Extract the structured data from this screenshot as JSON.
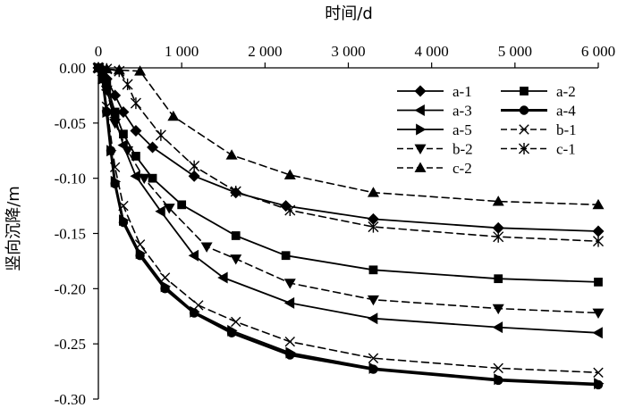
{
  "chart_data": {
    "type": "line",
    "xlabel": "时间/d",
    "ylabel": "竖向沉降/m",
    "xlim": [
      0,
      6000
    ],
    "ylim": [
      -0.3,
      0.0
    ],
    "x_ticks": [
      0,
      1000,
      2000,
      3000,
      4000,
      5000,
      6000
    ],
    "x_tick_labels": [
      "0",
      "1 000",
      "2 000",
      "3 000",
      "4 000",
      "5 000",
      "6 000"
    ],
    "y_ticks": [
      0.0,
      -0.05,
      -0.1,
      -0.15,
      -0.2,
      -0.25,
      -0.3
    ],
    "y_tick_labels": [
      "0.00",
      "-0.05",
      "-0.10",
      "-0.15",
      "-0.20",
      "-0.25",
      "-0.30"
    ],
    "x_axis_position": "top",
    "grid": false,
    "legend_position": "top-right",
    "legend_columns": 2,
    "series": [
      {
        "name": "a-1",
        "marker": "diamond",
        "line": "solid",
        "x": [
          0,
          50,
          100,
          200,
          300,
          450,
          650,
          1150,
          1650,
          2250,
          3300,
          4800,
          6000
        ],
        "y": [
          0,
          -0.003,
          -0.01,
          -0.025,
          -0.04,
          -0.057,
          -0.072,
          -0.098,
          -0.113,
          -0.125,
          -0.137,
          -0.145,
          -0.148
        ]
      },
      {
        "name": "a-2",
        "marker": "square",
        "line": "solid",
        "x": [
          0,
          50,
          100,
          200,
          300,
          450,
          650,
          1000,
          1650,
          2250,
          3300,
          4800,
          6000
        ],
        "y": [
          0,
          -0.005,
          -0.015,
          -0.04,
          -0.06,
          -0.08,
          -0.1,
          -0.124,
          -0.152,
          -0.17,
          -0.183,
          -0.191,
          -0.194
        ]
      },
      {
        "name": "a-3",
        "marker": "triangle-left",
        "line": "solid",
        "x": [
          0,
          50,
          100,
          200,
          300,
          450,
          750,
          1150,
          1500,
          2300,
          3300,
          4800,
          6000
        ],
        "y": [
          0,
          -0.007,
          -0.02,
          -0.045,
          -0.07,
          -0.098,
          -0.13,
          -0.17,
          -0.19,
          -0.213,
          -0.227,
          -0.235,
          -0.24
        ]
      },
      {
        "name": "a-4",
        "marker": "circle",
        "line": "solid-bold",
        "x": [
          0,
          50,
          100,
          150,
          200,
          300,
          500,
          800,
          1150,
          1600,
          2300,
          3300,
          4800,
          6000
        ],
        "y": [
          0,
          -0.01,
          -0.04,
          -0.075,
          -0.105,
          -0.14,
          -0.17,
          -0.2,
          -0.222,
          -0.24,
          -0.26,
          -0.273,
          -0.283,
          -0.287
        ]
      },
      {
        "name": "a-5",
        "marker": "triangle-right",
        "line": "solid",
        "x": [
          0,
          50,
          100,
          150,
          200,
          300,
          500,
          800,
          1150,
          1600,
          2300,
          3300,
          4800,
          6000
        ],
        "y": [
          0,
          -0.01,
          -0.04,
          -0.075,
          -0.103,
          -0.138,
          -0.168,
          -0.198,
          -0.221,
          -0.238,
          -0.258,
          -0.272,
          -0.282,
          -0.286
        ]
      },
      {
        "name": "b-1",
        "marker": "x",
        "line": "dashed",
        "x": [
          0,
          50,
          100,
          200,
          300,
          500,
          800,
          1200,
          1650,
          2300,
          3300,
          4800,
          6000
        ],
        "y": [
          0,
          -0.01,
          -0.035,
          -0.09,
          -0.125,
          -0.16,
          -0.19,
          -0.215,
          -0.23,
          -0.248,
          -0.263,
          -0.272,
          -0.276
        ]
      },
      {
        "name": "b-2",
        "marker": "triangle-down",
        "line": "dashed",
        "x": [
          0,
          50,
          100,
          200,
          350,
          550,
          850,
          1300,
          1650,
          2300,
          3300,
          4800,
          6000
        ],
        "y": [
          0,
          -0.005,
          -0.02,
          -0.05,
          -0.075,
          -0.1,
          -0.127,
          -0.162,
          -0.173,
          -0.195,
          -0.21,
          -0.218,
          -0.222
        ]
      },
      {
        "name": "c-1",
        "marker": "asterisk",
        "line": "dashed",
        "x": [
          0,
          100,
          250,
          350,
          450,
          750,
          1150,
          1650,
          2300,
          3300,
          4800,
          6000
        ],
        "y": [
          0,
          -0.001,
          -0.003,
          -0.015,
          -0.032,
          -0.061,
          -0.089,
          -0.112,
          -0.129,
          -0.144,
          -0.153,
          -0.157
        ]
      },
      {
        "name": "c-2",
        "marker": "triangle-up",
        "line": "dashed",
        "x": [
          0,
          100,
          250,
          500,
          900,
          1600,
          2300,
          3300,
          4800,
          6000
        ],
        "y": [
          0,
          -0.001,
          -0.002,
          -0.003,
          -0.044,
          -0.079,
          -0.097,
          -0.113,
          -0.121,
          -0.124
        ]
      }
    ]
  }
}
